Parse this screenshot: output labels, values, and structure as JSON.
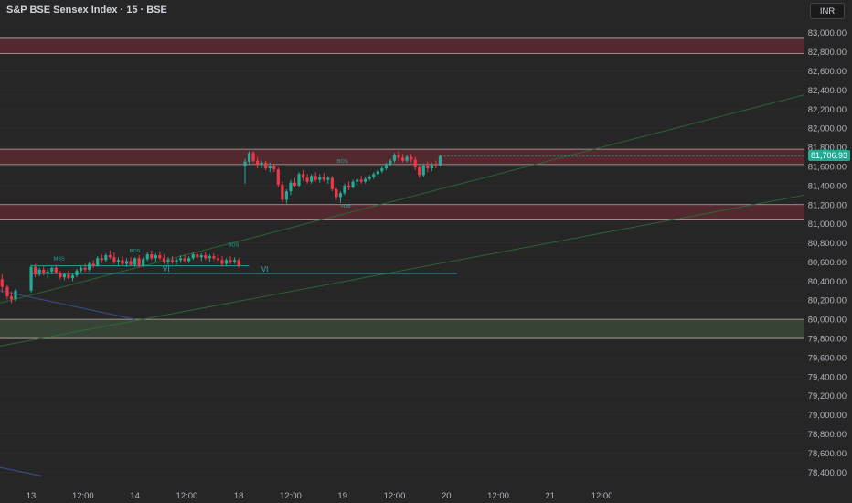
{
  "chart_title": "S&P BSE Sensex Index · 15 · BSE",
  "currency": "INR",
  "last_price_label": "81,706.93",
  "colors": {
    "background": "#262626",
    "up": "#22ab94",
    "down": "#f23645",
    "zone_fill_red": "#5c2a33",
    "zone_fill_green": "#3b4a38",
    "zone_border": "#e6c7c7",
    "trend_line": "#2a6b3a",
    "level_line": "#2bb3c0",
    "text": "#b2b5be"
  },
  "chart_data": {
    "type": "candlestick",
    "ylim": [
      78250,
      83150
    ],
    "y_ticks": [
      78400,
      78600,
      78800,
      79000,
      79200,
      79400,
      79600,
      79800,
      80000,
      80200,
      80400,
      80600,
      80800,
      81000,
      81200,
      81400,
      81600,
      81800,
      82000,
      82200,
      82400,
      82600,
      82800,
      83000
    ],
    "y_tick_labels": [
      "78,400.00",
      "78,600.00",
      "78,800.00",
      "79,000.00",
      "79,200.00",
      "79,400.00",
      "79,600.00",
      "79,800.00",
      "80,000.00",
      "80,200.00",
      "80,400.00",
      "80,600.00",
      "80,800.00",
      "81,000.00",
      "81,200.00",
      "81,400.00",
      "81,600.00",
      "81,800.00",
      "82,000.00",
      "82,200.00",
      "82,400.00",
      "82,600.00",
      "82,800.00",
      "83,000.00"
    ],
    "x_range": [
      -0.3,
      7.45
    ],
    "x_ticks": [
      {
        "t": 0.0,
        "label": "13"
      },
      {
        "t": 0.5,
        "label": "12:00"
      },
      {
        "t": 1.0,
        "label": "14"
      },
      {
        "t": 1.5,
        "label": "12:00"
      },
      {
        "t": 2.0,
        "label": "18"
      },
      {
        "t": 2.5,
        "label": "12:00"
      },
      {
        "t": 3.0,
        "label": "19"
      },
      {
        "t": 3.5,
        "label": "12:00"
      },
      {
        "t": 4.0,
        "label": "20"
      },
      {
        "t": 4.5,
        "label": "12:00"
      },
      {
        "t": 5.0,
        "label": "21"
      },
      {
        "t": 5.5,
        "label": "12:00"
      }
    ],
    "last_price": 81706.93,
    "zones": [
      {
        "y1": 82780,
        "y2": 82940,
        "kind": "supply"
      },
      {
        "y1": 81620,
        "y2": 81780,
        "kind": "supply"
      },
      {
        "y1": 81040,
        "y2": 81200,
        "kind": "supply"
      },
      {
        "y1": 79800,
        "y2": 80000,
        "kind": "demand"
      }
    ],
    "lines": [
      {
        "x1": -0.3,
        "y1": 80170,
        "x2": 7.45,
        "y2": 82350,
        "kind": "trend"
      },
      {
        "x1": -0.3,
        "y1": 79720,
        "x2": 7.45,
        "y2": 81300,
        "kind": "trend"
      },
      {
        "x1": 0.0,
        "y1": 80480,
        "x2": 4.1,
        "y2": 80480,
        "kind": "level"
      },
      {
        "x1": 0.0,
        "y1": 80560,
        "x2": 2.1,
        "y2": 80560,
        "kind": "level"
      },
      {
        "x1": -0.3,
        "y1": 80300,
        "x2": 1.0,
        "y2": 80000,
        "kind": "blue"
      },
      {
        "x1": -0.3,
        "y1": 78450,
        "x2": 0.1,
        "y2": 78360,
        "kind": "blue"
      }
    ],
    "annotations": [
      {
        "t": 0.27,
        "y": 80620,
        "text": "MSS"
      },
      {
        "t": 1.0,
        "y": 80700,
        "text": "BOS"
      },
      {
        "t": 1.3,
        "y": 80500,
        "text": "VI"
      },
      {
        "t": 1.95,
        "y": 80760,
        "text": "BOS"
      },
      {
        "t": 2.25,
        "y": 80500,
        "text": "VI"
      },
      {
        "t": 3.0,
        "y": 81640,
        "text": "BOS"
      },
      {
        "t": 3.03,
        "y": 81170,
        "text": "+OB"
      }
    ],
    "candles": [
      {
        "t": -0.28,
        "o": 80420,
        "h": 80470,
        "l": 80280,
        "c": 80340
      },
      {
        "t": -0.23,
        "o": 80340,
        "h": 80360,
        "l": 80210,
        "c": 80240
      },
      {
        "t": -0.19,
        "o": 80240,
        "h": 80290,
        "l": 80170,
        "c": 80210
      },
      {
        "t": -0.15,
        "o": 80210,
        "h": 80320,
        "l": 80190,
        "c": 80300
      },
      {
        "t": 0.0,
        "o": 80300,
        "h": 80570,
        "l": 80280,
        "c": 80550
      },
      {
        "t": 0.04,
        "o": 80550,
        "h": 80580,
        "l": 80440,
        "c": 80470
      },
      {
        "t": 0.08,
        "o": 80470,
        "h": 80540,
        "l": 80450,
        "c": 80520
      },
      {
        "t": 0.12,
        "o": 80520,
        "h": 80560,
        "l": 80460,
        "c": 80480
      },
      {
        "t": 0.16,
        "o": 80480,
        "h": 80530,
        "l": 80430,
        "c": 80500
      },
      {
        "t": 0.2,
        "o": 80500,
        "h": 80550,
        "l": 80470,
        "c": 80540
      },
      {
        "t": 0.24,
        "o": 80540,
        "h": 80570,
        "l": 80470,
        "c": 80490
      },
      {
        "t": 0.28,
        "o": 80490,
        "h": 80510,
        "l": 80420,
        "c": 80440
      },
      {
        "t": 0.32,
        "o": 80440,
        "h": 80490,
        "l": 80410,
        "c": 80470
      },
      {
        "t": 0.36,
        "o": 80470,
        "h": 80510,
        "l": 80420,
        "c": 80430
      },
      {
        "t": 0.4,
        "o": 80430,
        "h": 80480,
        "l": 80400,
        "c": 80460
      },
      {
        "t": 0.44,
        "o": 80460,
        "h": 80530,
        "l": 80440,
        "c": 80510
      },
      {
        "t": 0.48,
        "o": 80510,
        "h": 80560,
        "l": 80490,
        "c": 80540
      },
      {
        "t": 0.52,
        "o": 80540,
        "h": 80580,
        "l": 80500,
        "c": 80520
      },
      {
        "t": 0.56,
        "o": 80520,
        "h": 80600,
        "l": 80500,
        "c": 80580
      },
      {
        "t": 0.6,
        "o": 80580,
        "h": 80620,
        "l": 80540,
        "c": 80560
      },
      {
        "t": 0.64,
        "o": 80560,
        "h": 80660,
        "l": 80550,
        "c": 80640
      },
      {
        "t": 0.68,
        "o": 80640,
        "h": 80680,
        "l": 80590,
        "c": 80620
      },
      {
        "t": 0.72,
        "o": 80620,
        "h": 80690,
        "l": 80600,
        "c": 80670
      },
      {
        "t": 0.76,
        "o": 80670,
        "h": 80720,
        "l": 80630,
        "c": 80650
      },
      {
        "t": 0.8,
        "o": 80650,
        "h": 80700,
        "l": 80580,
        "c": 80600
      },
      {
        "t": 0.84,
        "o": 80600,
        "h": 80650,
        "l": 80560,
        "c": 80620
      },
      {
        "t": 0.88,
        "o": 80620,
        "h": 80660,
        "l": 80560,
        "c": 80580
      },
      {
        "t": 0.92,
        "o": 80580,
        "h": 80640,
        "l": 80550,
        "c": 80610
      },
      {
        "t": 0.96,
        "o": 80610,
        "h": 80650,
        "l": 80560,
        "c": 80570
      },
      {
        "t": 1.0,
        "o": 80570,
        "h": 80650,
        "l": 80550,
        "c": 80640
      },
      {
        "t": 1.04,
        "o": 80640,
        "h": 80670,
        "l": 80540,
        "c": 80560
      },
      {
        "t": 1.08,
        "o": 80560,
        "h": 80650,
        "l": 80550,
        "c": 80630
      },
      {
        "t": 1.12,
        "o": 80630,
        "h": 80700,
        "l": 80610,
        "c": 80680
      },
      {
        "t": 1.16,
        "o": 80680,
        "h": 80720,
        "l": 80620,
        "c": 80640
      },
      {
        "t": 1.2,
        "o": 80640,
        "h": 80690,
        "l": 80600,
        "c": 80670
      },
      {
        "t": 1.24,
        "o": 80670,
        "h": 80710,
        "l": 80620,
        "c": 80640
      },
      {
        "t": 1.28,
        "o": 80640,
        "h": 80680,
        "l": 80580,
        "c": 80600
      },
      {
        "t": 1.32,
        "o": 80600,
        "h": 80650,
        "l": 80570,
        "c": 80620
      },
      {
        "t": 1.36,
        "o": 80620,
        "h": 80660,
        "l": 80580,
        "c": 80600
      },
      {
        "t": 1.4,
        "o": 80600,
        "h": 80640,
        "l": 80570,
        "c": 80620
      },
      {
        "t": 1.44,
        "o": 80620,
        "h": 80670,
        "l": 80590,
        "c": 80640
      },
      {
        "t": 1.48,
        "o": 80640,
        "h": 80680,
        "l": 80600,
        "c": 80610
      },
      {
        "t": 1.52,
        "o": 80610,
        "h": 80660,
        "l": 80590,
        "c": 80640
      },
      {
        "t": 1.56,
        "o": 80640,
        "h": 80700,
        "l": 80620,
        "c": 80680
      },
      {
        "t": 1.6,
        "o": 80680,
        "h": 80710,
        "l": 80630,
        "c": 80650
      },
      {
        "t": 1.64,
        "o": 80650,
        "h": 80690,
        "l": 80610,
        "c": 80670
      },
      {
        "t": 1.68,
        "o": 80670,
        "h": 80700,
        "l": 80620,
        "c": 80640
      },
      {
        "t": 1.72,
        "o": 80640,
        "h": 80680,
        "l": 80600,
        "c": 80660
      },
      {
        "t": 1.76,
        "o": 80660,
        "h": 80690,
        "l": 80620,
        "c": 80640
      },
      {
        "t": 1.8,
        "o": 80640,
        "h": 80680,
        "l": 80610,
        "c": 80620
      },
      {
        "t": 1.84,
        "o": 80620,
        "h": 80660,
        "l": 80550,
        "c": 80580
      },
      {
        "t": 1.88,
        "o": 80580,
        "h": 80640,
        "l": 80560,
        "c": 80620
      },
      {
        "t": 1.92,
        "o": 80620,
        "h": 80660,
        "l": 80580,
        "c": 80600
      },
      {
        "t": 1.96,
        "o": 80600,
        "h": 80650,
        "l": 80580,
        "c": 80620
      },
      {
        "t": 2.0,
        "o": 80620,
        "h": 80640,
        "l": 80540,
        "c": 80560
      },
      {
        "t": 2.06,
        "o": 81600,
        "h": 81680,
        "l": 81420,
        "c": 81650
      },
      {
        "t": 2.1,
        "o": 81650,
        "h": 81760,
        "l": 81620,
        "c": 81740
      },
      {
        "t": 2.14,
        "o": 81740,
        "h": 81760,
        "l": 81640,
        "c": 81660
      },
      {
        "t": 2.18,
        "o": 81660,
        "h": 81700,
        "l": 81580,
        "c": 81620
      },
      {
        "t": 2.22,
        "o": 81620,
        "h": 81660,
        "l": 81580,
        "c": 81640
      },
      {
        "t": 2.26,
        "o": 81640,
        "h": 81660,
        "l": 81560,
        "c": 81580
      },
      {
        "t": 2.3,
        "o": 81580,
        "h": 81640,
        "l": 81540,
        "c": 81600
      },
      {
        "t": 2.34,
        "o": 81600,
        "h": 81630,
        "l": 81540,
        "c": 81570
      },
      {
        "t": 2.38,
        "o": 81570,
        "h": 81590,
        "l": 81380,
        "c": 81410
      },
      {
        "t": 2.42,
        "o": 81410,
        "h": 81440,
        "l": 81220,
        "c": 81250
      },
      {
        "t": 2.46,
        "o": 81250,
        "h": 81360,
        "l": 81210,
        "c": 81340
      },
      {
        "t": 2.5,
        "o": 81340,
        "h": 81460,
        "l": 81300,
        "c": 81430
      },
      {
        "t": 2.54,
        "o": 81430,
        "h": 81480,
        "l": 81380,
        "c": 81400
      },
      {
        "t": 2.58,
        "o": 81400,
        "h": 81540,
        "l": 81380,
        "c": 81520
      },
      {
        "t": 2.62,
        "o": 81520,
        "h": 81560,
        "l": 81450,
        "c": 81480
      },
      {
        "t": 2.66,
        "o": 81480,
        "h": 81520,
        "l": 81420,
        "c": 81440
      },
      {
        "t": 2.7,
        "o": 81440,
        "h": 81520,
        "l": 81420,
        "c": 81500
      },
      {
        "t": 2.74,
        "o": 81500,
        "h": 81540,
        "l": 81440,
        "c": 81460
      },
      {
        "t": 2.78,
        "o": 81460,
        "h": 81520,
        "l": 81430,
        "c": 81490
      },
      {
        "t": 2.82,
        "o": 81490,
        "h": 81530,
        "l": 81440,
        "c": 81460
      },
      {
        "t": 2.86,
        "o": 81460,
        "h": 81500,
        "l": 81420,
        "c": 81480
      },
      {
        "t": 2.9,
        "o": 81480,
        "h": 81500,
        "l": 81340,
        "c": 81360
      },
      {
        "t": 2.94,
        "o": 81360,
        "h": 81380,
        "l": 81250,
        "c": 81280
      },
      {
        "t": 2.98,
        "o": 81280,
        "h": 81340,
        "l": 81220,
        "c": 81320
      },
      {
        "t": 3.02,
        "o": 81320,
        "h": 81420,
        "l": 81300,
        "c": 81400
      },
      {
        "t": 3.06,
        "o": 81400,
        "h": 81440,
        "l": 81350,
        "c": 81380
      },
      {
        "t": 3.1,
        "o": 81380,
        "h": 81460,
        "l": 81370,
        "c": 81440
      },
      {
        "t": 3.14,
        "o": 81440,
        "h": 81480,
        "l": 81400,
        "c": 81460
      },
      {
        "t": 3.18,
        "o": 81460,
        "h": 81500,
        "l": 81420,
        "c": 81440
      },
      {
        "t": 3.22,
        "o": 81440,
        "h": 81490,
        "l": 81420,
        "c": 81470
      },
      {
        "t": 3.26,
        "o": 81470,
        "h": 81510,
        "l": 81450,
        "c": 81490
      },
      {
        "t": 3.3,
        "o": 81490,
        "h": 81540,
        "l": 81470,
        "c": 81520
      },
      {
        "t": 3.34,
        "o": 81520,
        "h": 81570,
        "l": 81500,
        "c": 81550
      },
      {
        "t": 3.38,
        "o": 81550,
        "h": 81600,
        "l": 81530,
        "c": 81580
      },
      {
        "t": 3.42,
        "o": 81580,
        "h": 81640,
        "l": 81560,
        "c": 81620
      },
      {
        "t": 3.46,
        "o": 81620,
        "h": 81680,
        "l": 81600,
        "c": 81660
      },
      {
        "t": 3.5,
        "o": 81660,
        "h": 81740,
        "l": 81640,
        "c": 81720
      },
      {
        "t": 3.54,
        "o": 81720,
        "h": 81760,
        "l": 81660,
        "c": 81690
      },
      {
        "t": 3.58,
        "o": 81690,
        "h": 81730,
        "l": 81640,
        "c": 81660
      },
      {
        "t": 3.62,
        "o": 81660,
        "h": 81720,
        "l": 81640,
        "c": 81700
      },
      {
        "t": 3.66,
        "o": 81700,
        "h": 81730,
        "l": 81640,
        "c": 81670
      },
      {
        "t": 3.7,
        "o": 81670,
        "h": 81700,
        "l": 81560,
        "c": 81590
      },
      {
        "t": 3.74,
        "o": 81590,
        "h": 81610,
        "l": 81480,
        "c": 81510
      },
      {
        "t": 3.78,
        "o": 81510,
        "h": 81630,
        "l": 81490,
        "c": 81610
      },
      {
        "t": 3.82,
        "o": 81610,
        "h": 81650,
        "l": 81540,
        "c": 81580
      },
      {
        "t": 3.86,
        "o": 81580,
        "h": 81640,
        "l": 81550,
        "c": 81620
      },
      {
        "t": 3.9,
        "o": 81620,
        "h": 81660,
        "l": 81580,
        "c": 81610
      },
      {
        "t": 3.94,
        "o": 81610,
        "h": 81720,
        "l": 81600,
        "c": 81706.93
      }
    ]
  }
}
